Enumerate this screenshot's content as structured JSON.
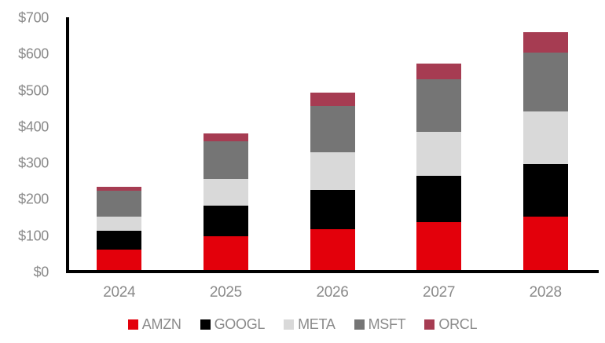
{
  "chart_data": {
    "type": "bar",
    "stacked": true,
    "title": "",
    "xlabel": "",
    "ylabel": "",
    "categories": [
      "2024",
      "2025",
      "2026",
      "2027",
      "2028"
    ],
    "series": [
      {
        "name": "AMZN",
        "color": "#E3000B",
        "values": [
          60,
          98,
          116,
          137,
          152
        ]
      },
      {
        "name": "GOOGL",
        "color": "#000000",
        "values": [
          52,
          83,
          109,
          126,
          144
        ]
      },
      {
        "name": "META",
        "color": "#D9D9D9",
        "values": [
          40,
          73,
          103,
          122,
          144
        ]
      },
      {
        "name": "MSFT",
        "color": "#757575",
        "values": [
          71,
          105,
          127,
          145,
          163
        ]
      },
      {
        "name": "ORCL",
        "color": "#A63C52",
        "values": [
          10,
          22,
          38,
          43,
          56
        ]
      }
    ],
    "stack_totals": [
      233,
      381,
      493,
      573,
      659
    ],
    "y_axis": {
      "min": 0,
      "max": 700,
      "step": 100,
      "tick_labels": [
        "$0",
        "$100",
        "$200",
        "$300",
        "$400",
        "$500",
        "$600",
        "$700"
      ]
    },
    "legend": {
      "position": "bottom",
      "entries": [
        "AMZN",
        "GOOGL",
        "META",
        "MSFT",
        "ORCL"
      ]
    },
    "grid": false
  },
  "colors": {
    "background": "#ffffff",
    "axis_line": "#000000",
    "tick_label": "#8a8a8a",
    "legend_label": "#8a8a8a"
  }
}
